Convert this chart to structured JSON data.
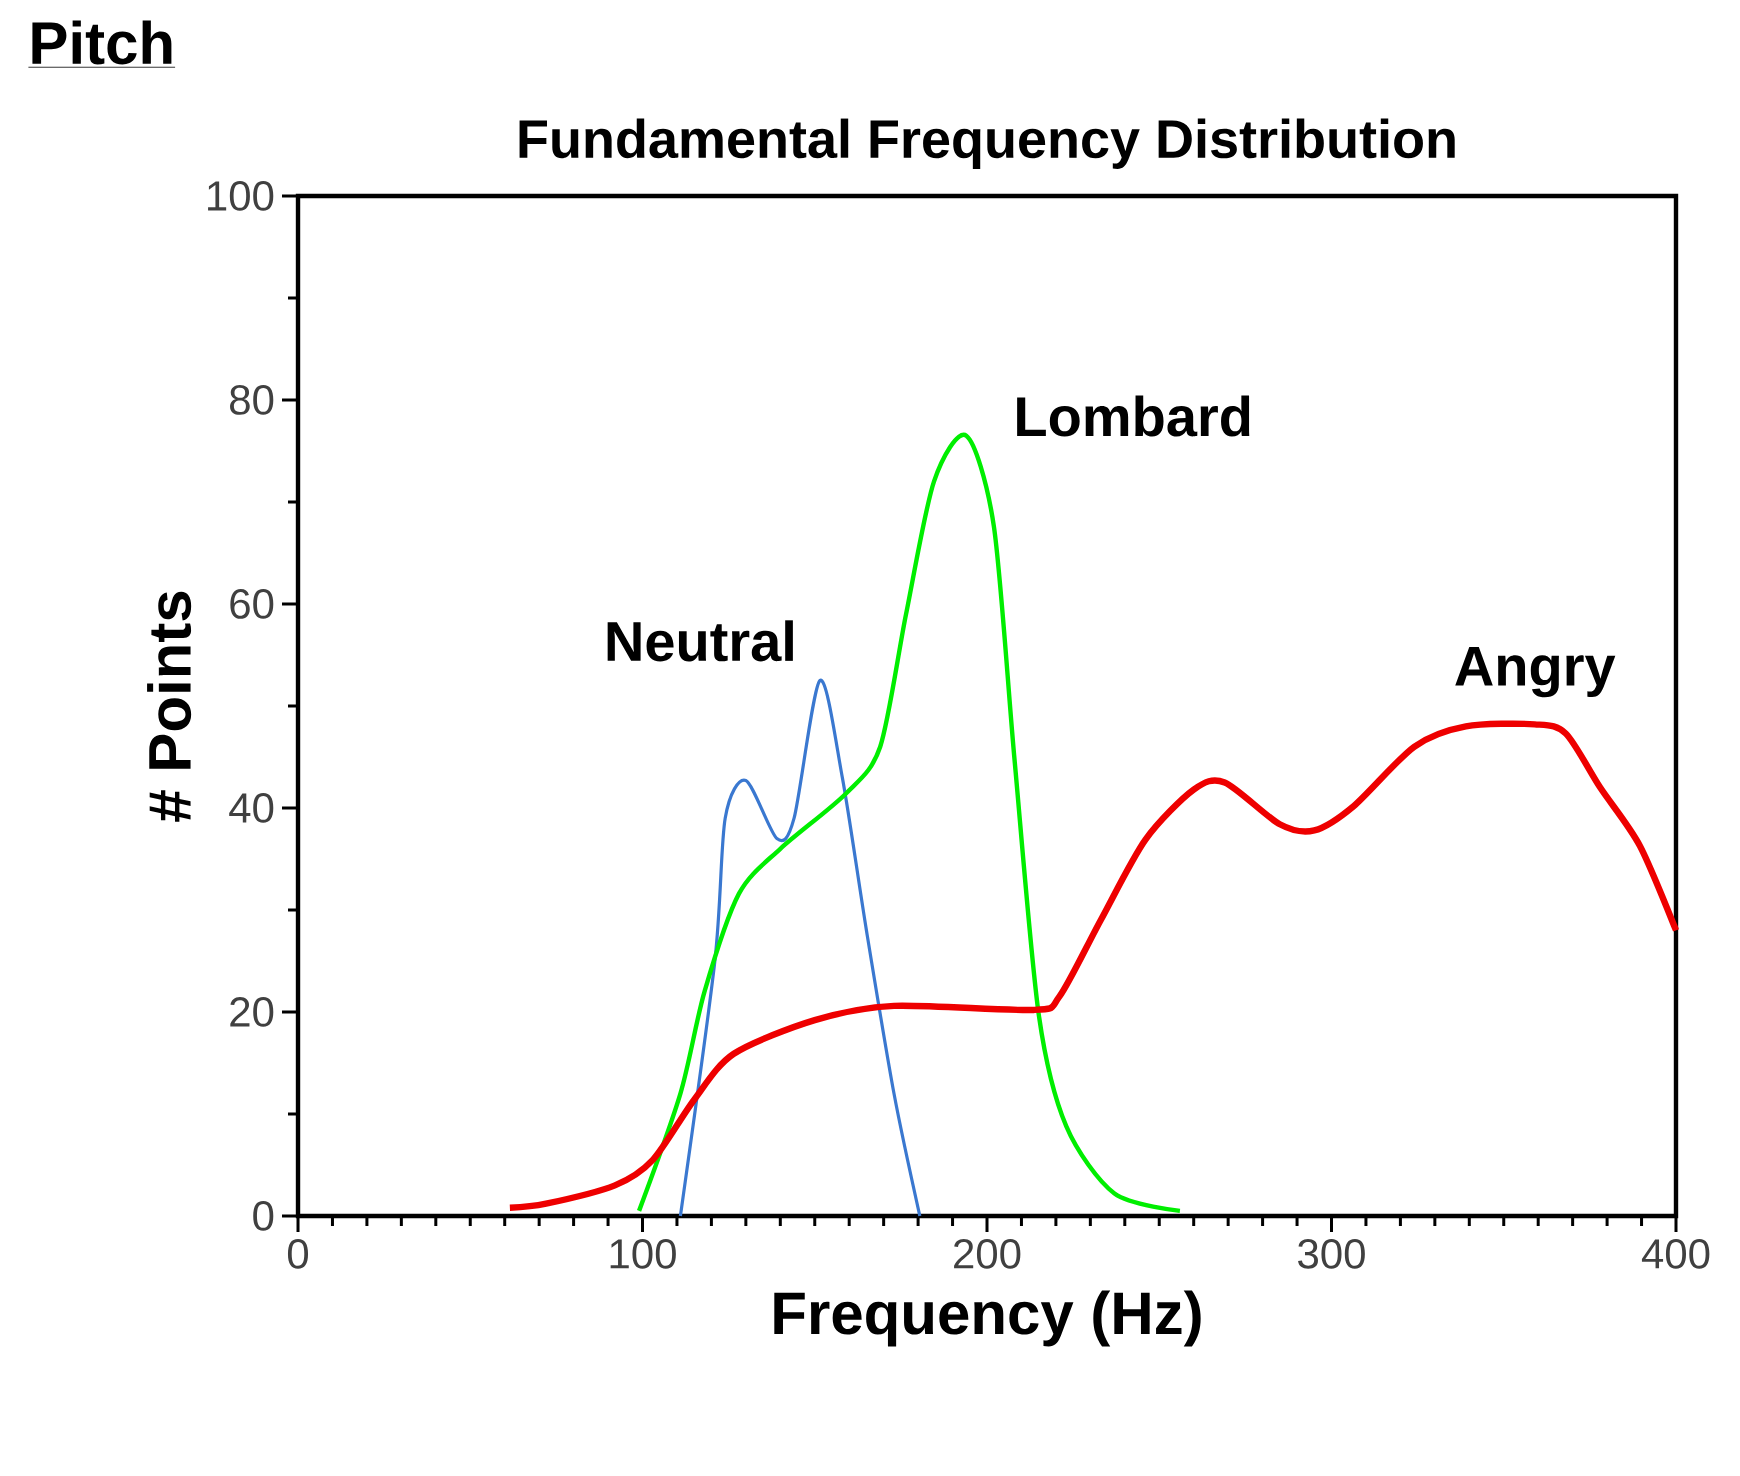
{
  "chart_data": {
    "type": "line",
    "title": "Pitch",
    "subtitle": "Fundamental Frequency Distribution",
    "xlabel": "Frequency (Hz)",
    "ylabel": "# Points",
    "xlim": [
      0,
      400
    ],
    "ylim": [
      0,
      100
    ],
    "xticks": [
      0,
      100,
      200,
      300,
      400
    ],
    "yticks": [
      0,
      20,
      40,
      60,
      80,
      100
    ],
    "grid": false,
    "legend": false,
    "marker": "none",
    "line_style": "solid",
    "series": [
      {
        "name": "Neutral",
        "color": "#3a78d0",
        "x": [
          111,
          121,
          124,
          130,
          139,
          144,
          151.5,
          158,
          165,
          173,
          180.5
        ],
        "values": [
          0,
          25,
          39,
          42.7,
          37,
          39,
          52.5,
          43,
          28,
          12,
          0
        ]
      },
      {
        "name": "Lombard",
        "color": "#00ee00",
        "x": [
          99,
          111,
          118,
          128,
          140,
          159,
          169,
          176.5,
          184.6,
          194,
          202,
          208,
          215,
          223,
          237,
          256
        ],
        "values": [
          0.5,
          12,
          22,
          31.6,
          36,
          41.4,
          46,
          59,
          72,
          76.5,
          67.6,
          44.7,
          19.8,
          8.8,
          2.2,
          0.5
        ]
      },
      {
        "name": "Angry",
        "color": "#ee0000",
        "x": [
          61.5,
          72,
          92,
          103,
          115,
          126.5,
          150,
          173,
          213.6,
          221,
          233,
          246,
          260,
          269,
          285,
          295,
          306.5,
          324,
          339,
          359,
          368,
          378,
          389.5,
          400
        ],
        "values": [
          0.8,
          1.2,
          3,
          5.5,
          11.4,
          15.9,
          19.2,
          20.6,
          20.2,
          21.5,
          29,
          36.9,
          41.8,
          42.5,
          38.4,
          37.8,
          40.2,
          46,
          48,
          48.2,
          47.3,
          42,
          36.3,
          28
        ]
      }
    ]
  }
}
